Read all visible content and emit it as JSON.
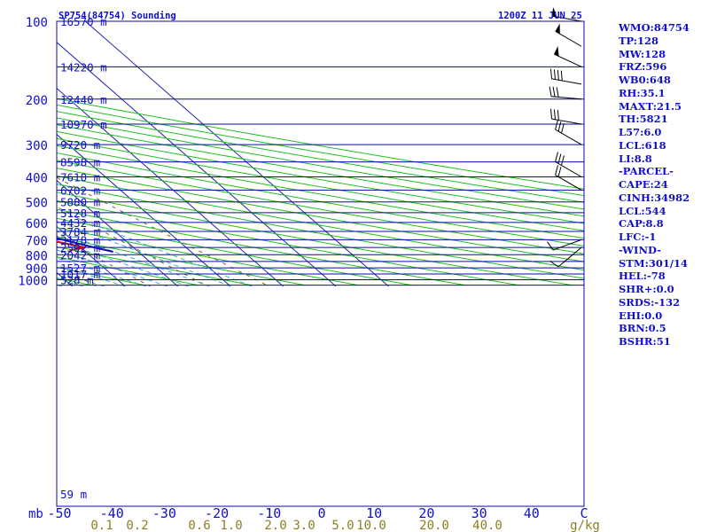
{
  "header": {
    "station": "SP754(84754) Sounding",
    "time": "1200Z 11 JUN 25",
    "pressure_unit": "mb",
    "mixing_unit": "g/kg"
  },
  "colors": {
    "isobar": "#0a0aa0",
    "isotherm": "#2020b0",
    "dry_adiabat": "#20c020",
    "moist_adiabat": "#40a8e8",
    "mixing_ratio": "#806040",
    "temperature": "#c01010",
    "dewpoint": "#105a10",
    "parcel": "#1010b0",
    "label": "#1010c8",
    "mixing_label": "#8a8020"
  },
  "chart_data": {
    "type": "line",
    "title": "SP754(84754) Sounding",
    "subtitle": "1200Z 11 JUN 25",
    "xlabel": "",
    "ylabel": "mb",
    "x_ticks": [
      -50,
      -40,
      -30,
      -20,
      -10,
      0,
      10,
      20,
      30,
      40,
      "C"
    ],
    "mixing_ratio_ticks": [
      "0.1",
      "0.2",
      "0.6",
      "1.0",
      "2.0",
      "3.0",
      "5.0",
      "10.0",
      "20.0",
      "40.0",
      "g/kg"
    ],
    "pressure_ticks": [
      {
        "p": 100,
        "label": "100",
        "height": "16570 m"
      },
      {
        "p": 150,
        "label": "",
        "height": "14220 m"
      },
      {
        "p": 200,
        "label": "200",
        "height": "12440 m"
      },
      {
        "p": 250,
        "label": "",
        "height": "10970 m"
      },
      {
        "p": 300,
        "label": "300",
        "height": "9720 m"
      },
      {
        "p": 350,
        "label": "",
        "height": "8598 m"
      },
      {
        "p": 400,
        "label": "400",
        "height": "7610 m"
      },
      {
        "p": 450,
        "label": "",
        "height": "6702 m"
      },
      {
        "p": 500,
        "label": "500",
        "height": "5880 m"
      },
      {
        "p": 550,
        "label": "",
        "height": "5128 m"
      },
      {
        "p": 600,
        "label": "600",
        "height": "4432 m"
      },
      {
        "p": 650,
        "label": "",
        "height": "3784 m"
      },
      {
        "p": 700,
        "label": "700",
        "height": "3178 m"
      },
      {
        "p": 750,
        "label": "",
        "height": "2592 m"
      },
      {
        "p": 800,
        "label": "800",
        "height": "2042 m"
      },
      {
        "p": 850,
        "label": "",
        "height": ""
      },
      {
        "p": 900,
        "label": "900",
        "height": "1527 m"
      },
      {
        "p": 950,
        "label": "",
        "height": "1017 m"
      },
      {
        "p": 1000,
        "label": "1000",
        "height": "528 m"
      },
      {
        "p": 1050,
        "label": "",
        "height": "59 m"
      }
    ],
    "series": [
      {
        "name": "Temperature",
        "points": [
          {
            "p": 100,
            "t": -57.5
          },
          {
            "p": 125,
            "t": -62.1
          },
          {
            "p": 135,
            "t": -64.9
          },
          {
            "p": 150,
            "t": -65.7
          },
          {
            "p": 175,
            "t": -63.4
          },
          {
            "p": 200,
            "t": -57.8
          },
          {
            "p": 250,
            "t": -48.6
          },
          {
            "p": 300,
            "t": -38.8
          },
          {
            "p": 350,
            "t": -29.6
          },
          {
            "p": 400,
            "t": -23.0
          },
          {
            "p": 430,
            "t": -18.1
          },
          {
            "p": 460,
            "t": -17.0
          },
          {
            "p": 500,
            "t": -11.2
          },
          {
            "p": 550,
            "t": -9.4
          },
          {
            "p": 600,
            "t": -3.5
          },
          {
            "p": 650,
            "t": 0.3
          },
          {
            "p": 700,
            "t": 5.3
          },
          {
            "p": 750,
            "t": 10.8
          },
          {
            "p": 770,
            "t": 7.2
          }
        ]
      },
      {
        "name": "Dewpoint",
        "points": [
          {
            "p": 100,
            "t": -74.6
          },
          {
            "p": 125,
            "t": -82.4
          },
          {
            "p": 150,
            "t": -78.9
          },
          {
            "p": 175,
            "t": -72.3
          },
          {
            "p": 200,
            "t": -68.5
          },
          {
            "p": 245,
            "t": -67.8
          },
          {
            "p": 250,
            "t": -56.0
          },
          {
            "p": 280,
            "t": -56.1
          },
          {
            "p": 300,
            "t": -43.8
          },
          {
            "p": 310,
            "t": -45.7
          },
          {
            "p": 400,
            "t": -59.3
          },
          {
            "p": 430,
            "t": -54.1
          },
          {
            "p": 470,
            "t": -50.9
          },
          {
            "p": 535,
            "t": -52.8
          },
          {
            "p": 545,
            "t": -11.7
          },
          {
            "p": 600,
            "t": -14.1
          },
          {
            "p": 700,
            "t": -12.3
          },
          {
            "p": 770,
            "t": -7.5
          },
          {
            "p": 775,
            "t": -5.0
          }
        ]
      },
      {
        "name": "Parcel",
        "points": [
          {
            "p": 100,
            "t": -93.0
          },
          {
            "p": 150,
            "t": -79.1
          },
          {
            "p": 200,
            "t": -66.3
          },
          {
            "p": 250,
            "t": -54.3
          },
          {
            "p": 300,
            "t": -43.0
          },
          {
            "p": 350,
            "t": -33.1
          },
          {
            "p": 400,
            "t": -24.8
          },
          {
            "p": 450,
            "t": -17.6
          },
          {
            "p": 500,
            "t": -11.4
          },
          {
            "p": 550,
            "t": -6.4
          },
          {
            "p": 600,
            "t": -0.6
          },
          {
            "p": 650,
            "t": 4.2
          },
          {
            "p": 700,
            "t": 8.2
          },
          {
            "p": 750,
            "t": 12.6
          },
          {
            "p": 780,
            "t": 15.2
          }
        ]
      }
    ],
    "wind_barbs": [
      {
        "p": 100,
        "dir": 280,
        "speed": 55
      },
      {
        "p": 125,
        "dir": 300,
        "speed": 50
      },
      {
        "p": 150,
        "dir": 295,
        "speed": 50
      },
      {
        "p": 175,
        "dir": 280,
        "speed": 40
      },
      {
        "p": 200,
        "dir": 275,
        "speed": 35
      },
      {
        "p": 250,
        "dir": 280,
        "speed": 30
      },
      {
        "p": 300,
        "dir": 300,
        "speed": 30
      },
      {
        "p": 400,
        "dir": 300,
        "speed": 30
      },
      {
        "p": 450,
        "dir": 300,
        "speed": 20
      },
      {
        "p": 700,
        "dir": 250,
        "speed": 10
      },
      {
        "p": 750,
        "dir": 230,
        "speed": 10
      }
    ],
    "grid": true
  },
  "indices": [
    "WMO:84754",
    "TP:128",
    "MW:128",
    "FRZ:596",
    "WB0:648",
    "RH:35.1",
    "MAXT:21.5",
    "TH:5821",
    "L57:6.0",
    "LCL:618",
    "LI:8.8",
    "-PARCEL-",
    "CAPE:24",
    "CINH:34982",
    "LCL:544",
    "CAP:8.8",
    "LFC:-1",
    "-WIND-",
    "STM:301/14",
    "HEL:-78",
    "SHR+:0.0",
    "SRDS:-132",
    "EHI:0.0",
    "BRN:0.5",
    "BSHR:51"
  ]
}
